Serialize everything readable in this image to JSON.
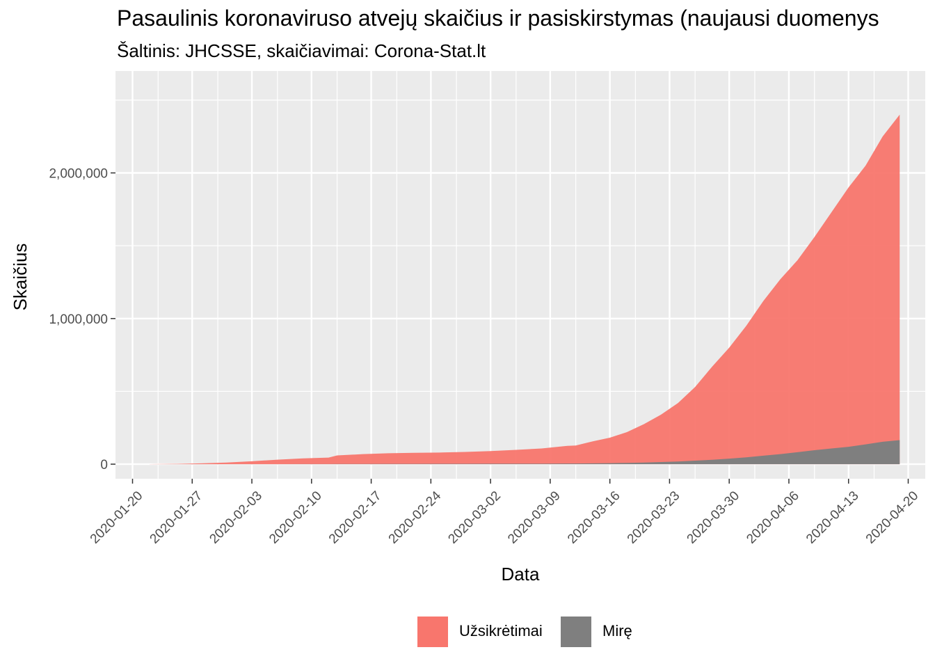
{
  "chart_data": {
    "type": "area",
    "title": "Pasaulinis koronaviruso atvejų skaičius ir pasiskirstymas (naujausi duomenys",
    "subtitle": "Šaltinis: JHCSSE, skaičiavimai: Corona-Stat.lt",
    "xlabel": "Data",
    "ylabel": "Skaičius",
    "x_tick_labels": [
      "2020-01-20",
      "2020-01-27",
      "2020-02-03",
      "2020-02-10",
      "2020-02-17",
      "2020-02-24",
      "2020-03-02",
      "2020-03-09",
      "2020-03-16",
      "2020-03-23",
      "2020-03-30",
      "2020-04-06",
      "2020-04-13",
      "2020-04-20"
    ],
    "y_tick_labels": [
      "0",
      "1,000,000",
      "2,000,000"
    ],
    "y_ticks": [
      0,
      1000000,
      2000000
    ],
    "xlim": [
      "2020-01-18",
      "2020-04-22"
    ],
    "ylim": [
      -100000,
      2700000
    ],
    "grid": true,
    "legend_position": "bottom",
    "dates": [
      "2020-01-22",
      "2020-01-25",
      "2020-01-28",
      "2020-01-31",
      "2020-02-03",
      "2020-02-06",
      "2020-02-09",
      "2020-02-12",
      "2020-02-13",
      "2020-02-16",
      "2020-02-19",
      "2020-02-22",
      "2020-02-25",
      "2020-02-28",
      "2020-03-02",
      "2020-03-05",
      "2020-03-08",
      "2020-03-11",
      "2020-03-12",
      "2020-03-14",
      "2020-03-16",
      "2020-03-18",
      "2020-03-20",
      "2020-03-22",
      "2020-03-24",
      "2020-03-26",
      "2020-03-28",
      "2020-03-30",
      "2020-04-01",
      "2020-04-03",
      "2020-04-05",
      "2020-04-07",
      "2020-04-09",
      "2020-04-11",
      "2020-04-13",
      "2020-04-15",
      "2020-04-17",
      "2020-04-19"
    ],
    "series": [
      {
        "name": "Užsikrėtimai",
        "color": "#F8766D",
        "values": [
          555,
          2100,
          5500,
          11000,
          20000,
          31000,
          40000,
          45000,
          60000,
          69000,
          75000,
          78000,
          80000,
          84000,
          90000,
          98000,
          108000,
          126000,
          128000,
          157000,
          182000,
          220000,
          275000,
          340000,
          420000,
          530000,
          670000,
          800000,
          950000,
          1120000,
          1270000,
          1400000,
          1560000,
          1730000,
          1900000,
          2050000,
          2250000,
          2400000
        ]
      },
      {
        "name": "Mirę",
        "color": "#7F7F7F",
        "values": [
          17,
          56,
          131,
          259,
          427,
          565,
          813,
          1115,
          1369,
          1666,
          2012,
          2361,
          2700,
          2900,
          3100,
          3350,
          3600,
          4300,
          4700,
          5700,
          7100,
          8700,
          11000,
          14700,
          18000,
          24000,
          30000,
          38000,
          47000,
          58000,
          69000,
          82000,
          96000,
          108000,
          119000,
          136000,
          154000,
          165000
        ]
      }
    ]
  }
}
